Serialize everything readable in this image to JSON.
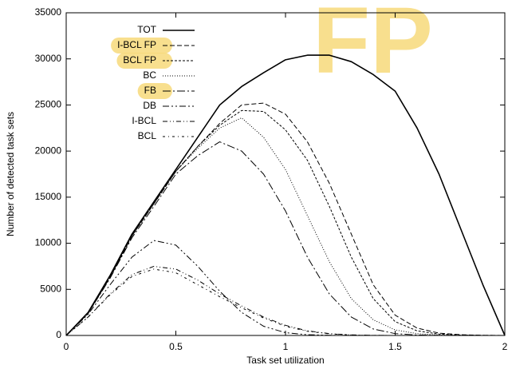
{
  "chart_data": {
    "type": "line",
    "x_label": "Task set utilization",
    "y_label": "Number of detected task sets",
    "annotation": "FP",
    "highlight_color": "#f7d97a",
    "legend": "upper left",
    "x": [
      0,
      0.1,
      0.2,
      0.3,
      0.4,
      0.5,
      0.6,
      0.7,
      0.8,
      0.9,
      1.0,
      1.1,
      1.2,
      1.3,
      1.4,
      1.5,
      1.6,
      1.7,
      1.8,
      1.9,
      2.0
    ],
    "series": [
      {
        "name": "TOT",
        "color": "#000000",
        "dash": "none",
        "width": 1.6,
        "highlighted": false,
        "values": [
          0,
          2500,
          6500,
          11000,
          14500,
          18000,
          21500,
          25000,
          27000,
          28500,
          29900,
          30400,
          30400,
          29700,
          28300,
          26500,
          22500,
          17500,
          11500,
          5500,
          0
        ]
      },
      {
        "name": "I-BCL FP",
        "color": "#000000",
        "dash": "6,3",
        "width": 1,
        "highlighted": true,
        "values": [
          0,
          2400,
          6300,
          10800,
          14300,
          17800,
          20500,
          23000,
          25000,
          25200,
          24000,
          21000,
          16500,
          11000,
          5500,
          2200,
          800,
          250,
          80,
          20,
          0
        ]
      },
      {
        "name": "BCL FP",
        "color": "#000000",
        "dash": "3,2",
        "width": 1,
        "highlighted": true,
        "values": [
          0,
          2400,
          6300,
          10800,
          14300,
          17800,
          20500,
          22800,
          24400,
          24300,
          22300,
          19000,
          14000,
          8500,
          4000,
          1500,
          500,
          150,
          40,
          10,
          0
        ]
      },
      {
        "name": "BC",
        "color": "#000000",
        "dash": "1,2",
        "width": 1,
        "highlighted": false,
        "values": [
          0,
          2400,
          6300,
          10800,
          14300,
          17800,
          20300,
          22500,
          23600,
          21500,
          18000,
          13000,
          8000,
          4000,
          1700,
          600,
          200,
          50,
          10,
          0,
          0
        ]
      },
      {
        "name": "FB",
        "color": "#000000",
        "dash": "10,3,2,3",
        "width": 1,
        "highlighted": true,
        "values": [
          0,
          2400,
          6200,
          10600,
          14000,
          17500,
          19500,
          21000,
          20000,
          17500,
          13500,
          8500,
          4500,
          2000,
          700,
          200,
          50,
          10,
          0,
          0,
          0
        ]
      },
      {
        "name": "DB",
        "color": "#000000",
        "dash": "8,3,2,3,2,3",
        "width": 1,
        "highlighted": false,
        "values": [
          0,
          2300,
          5500,
          8500,
          10300,
          9800,
          7500,
          4800,
          2500,
          1000,
          300,
          80,
          20,
          0,
          0,
          0,
          0,
          0,
          0,
          0,
          0
        ]
      },
      {
        "name": "I-BCL",
        "color": "#000000",
        "dash": "6,3,1,3,1,3",
        "width": 1,
        "highlighted": false,
        "values": [
          0,
          2000,
          4500,
          6600,
          7500,
          7200,
          6000,
          4500,
          3200,
          2000,
          1100,
          500,
          200,
          60,
          15,
          0,
          0,
          0,
          0,
          0,
          0
        ]
      },
      {
        "name": "BCL",
        "color": "#000000",
        "dash": "3,4,1,4",
        "width": 1,
        "highlighted": false,
        "values": [
          0,
          2000,
          4400,
          6400,
          7200,
          6800,
          5500,
          4200,
          3000,
          1900,
          1000,
          450,
          180,
          50,
          10,
          0,
          0,
          0,
          0,
          0,
          0
        ]
      }
    ],
    "xlim": [
      0,
      2
    ],
    "xticks": [
      0,
      0.5,
      1,
      1.5,
      2
    ],
    "ylim": [
      0,
      35000
    ],
    "yticks": [
      0,
      5000,
      10000,
      15000,
      20000,
      25000,
      30000,
      35000
    ],
    "grid": false
  }
}
